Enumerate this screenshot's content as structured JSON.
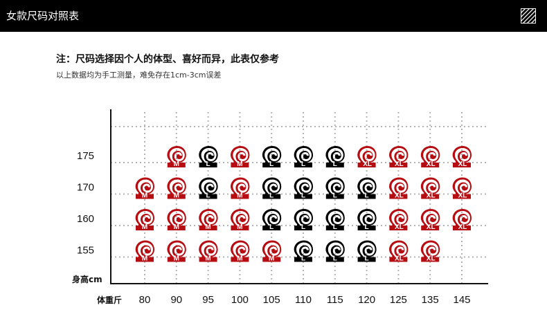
{
  "header": {
    "title": "女款尺码对照表",
    "icon": "diagonal-stripes-icon"
  },
  "note": {
    "title": "注：尺码选择因个人的体型、喜好而异，此表仅参考",
    "subtitle": "以上数据均为手工测量，难免存在1cm-3cm误差"
  },
  "chart_data": {
    "type": "table",
    "xlabel": "体重斤",
    "ylabel": "身高cm",
    "x": [
      "80",
      "90",
      "95",
      "100",
      "105",
      "110",
      "115",
      "120",
      "125",
      "135",
      "145"
    ],
    "y": [
      "175",
      "170",
      "160",
      "155"
    ],
    "grid": true,
    "cells": [
      [
        "",
        "M",
        "L",
        "M",
        "L",
        "L",
        "L",
        "XL",
        "XL",
        "XL",
        "XL"
      ],
      [
        "M",
        "M",
        "L",
        "M",
        "L",
        "L",
        "L",
        "L",
        "XL",
        "XL",
        "XL"
      ],
      [
        "M",
        "M",
        "M",
        "M",
        "L",
        "L",
        "L",
        "L",
        "XL",
        "XL",
        "XL"
      ],
      [
        "M",
        "M",
        "M",
        "M",
        "M",
        "L",
        "L",
        "L",
        "XL",
        "XL",
        ""
      ]
    ],
    "colors": {
      "M": "#b50d12",
      "L": "#000000",
      "XL": "#b50d12"
    },
    "icon": "spiral-logo-icon"
  }
}
